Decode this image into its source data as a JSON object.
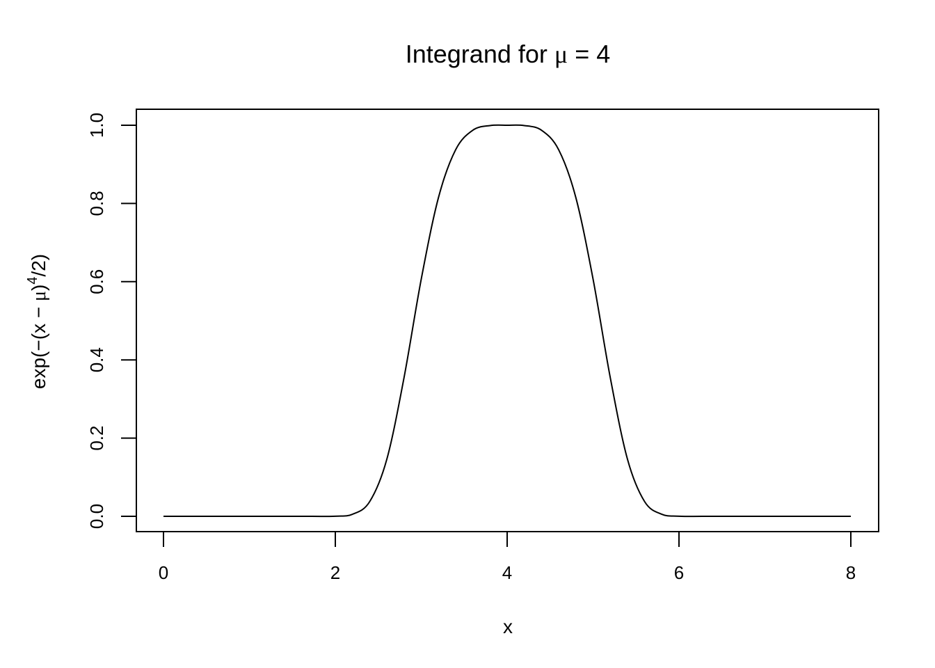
{
  "chart_data": {
    "type": "line",
    "title": {
      "prefix": "Integrand for ",
      "symbol": "μ",
      "suffix": " = 4"
    },
    "xlabel": "x",
    "ylabel": {
      "part1": "exp(−(x − ",
      "symbol": "μ",
      "part2": ")",
      "superscript": "4",
      "part3": "/2)"
    },
    "xlim": [
      0,
      8
    ],
    "ylim": [
      0,
      1
    ],
    "x_ticks": [
      0,
      2,
      4,
      6,
      8
    ],
    "x_tick_labels": [
      "0",
      "2",
      "4",
      "6",
      "8"
    ],
    "y_ticks": [
      0,
      0.2,
      0.4,
      0.6,
      0.8,
      1.0
    ],
    "y_tick_labels": [
      "0.0",
      "0.2",
      "0.4",
      "0.6",
      "0.8",
      "1.0"
    ],
    "grid": false,
    "legend": "none",
    "line_color": "#000000",
    "series": [
      {
        "x": [
          0,
          0.4,
          0.8,
          1.2,
          1.6,
          2.0,
          2.2,
          2.4,
          2.6,
          2.8,
          3.0,
          3.2,
          3.4,
          3.6,
          3.8,
          4.0,
          4.2,
          4.4,
          4.6,
          4.8,
          5.0,
          5.2,
          5.4,
          5.6,
          5.8,
          6.0,
          6.4,
          6.8,
          7.2,
          7.6,
          8.0
        ],
        "y": [
          0,
          0,
          0,
          0,
          0,
          0.0003,
          0.0053,
          0.0376,
          0.1463,
          0.3549,
          0.6065,
          0.8146,
          0.9372,
          0.9873,
          0.9992,
          1.0,
          0.9992,
          0.9873,
          0.9372,
          0.8146,
          0.6065,
          0.3549,
          0.1463,
          0.0376,
          0.0053,
          0.0003,
          0,
          0,
          0,
          0,
          0
        ]
      }
    ]
  }
}
